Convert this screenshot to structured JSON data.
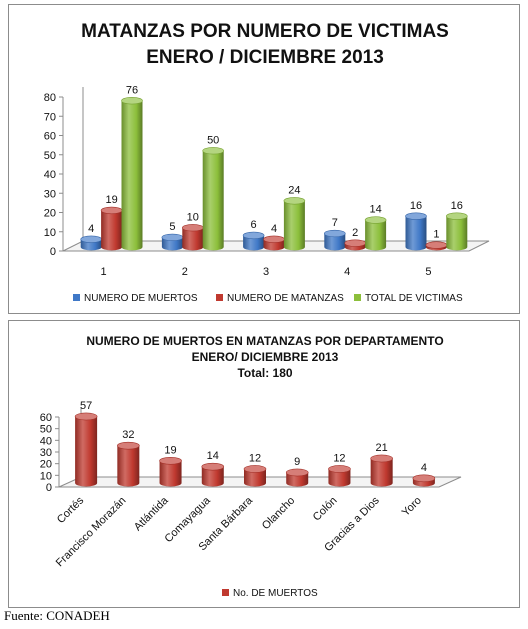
{
  "colors": {
    "blue": "#3f78c7",
    "red": "#c0392f",
    "green": "#8cbf3b",
    "axis": "#8c8c8c"
  },
  "source": "Fuente: CONADEH",
  "chart_data": [
    {
      "type": "bar",
      "style": "3d-cylinder",
      "title": "MATANZAS POR NUMERO DE VICTIMAS",
      "subtitle": "ENERO / DICIEMBRE 2013",
      "categories": [
        "1",
        "2",
        "3",
        "4",
        "5"
      ],
      "ylim": [
        0,
        80
      ],
      "yticks": [
        "0",
        "10",
        "20",
        "30",
        "40",
        "50",
        "60",
        "70",
        "80"
      ],
      "legend_position": "bottom",
      "series": [
        {
          "name": "NUMERO DE MUERTOS",
          "color": "#3f78c7",
          "values": [
            4,
            5,
            6,
            7,
            16
          ]
        },
        {
          "name": "NUMERO DE MATANZAS",
          "color": "#c0392f",
          "values": [
            19,
            10,
            4,
            2,
            1
          ]
        },
        {
          "name": "TOTAL DE VICTIMAS",
          "color": "#8cbf3b",
          "values": [
            76,
            50,
            24,
            14,
            16
          ]
        }
      ]
    },
    {
      "type": "bar",
      "style": "3d-cylinder",
      "title": "NUMERO DE MUERTOS EN MATANZAS POR DEPARTAMENTO",
      "subtitle": "ENERO/ DICIEMBRE 2013",
      "total_label": "Total: 180",
      "categories": [
        "Cortés",
        "Francisco Morazán",
        "Atlántida",
        "Comayagua",
        "Santa Bárbara",
        "Olancho",
        "Colón",
        "Gracias a Dios",
        "Yoro"
      ],
      "ylim": [
        0,
        60
      ],
      "yticks": [
        "0",
        "10",
        "20",
        "30",
        "40",
        "50",
        "60"
      ],
      "legend_position": "bottom",
      "series": [
        {
          "name": "No. DE MUERTOS",
          "color": "#c0392f",
          "values": [
            57,
            32,
            19,
            14,
            12,
            9,
            12,
            21,
            4
          ]
        }
      ]
    }
  ]
}
